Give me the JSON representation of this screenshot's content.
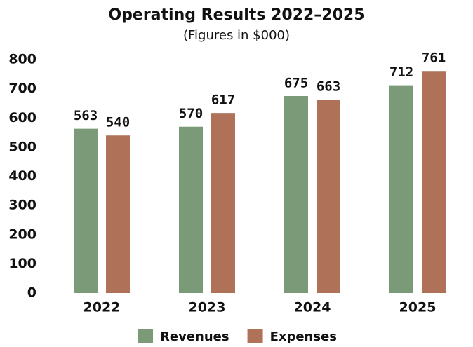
{
  "chart_data": {
    "type": "bar",
    "title": "Operating Results 2022–2025",
    "subtitle": "(Figures in $000)",
    "categories": [
      "2022",
      "2023",
      "2024",
      "2025"
    ],
    "series": [
      {
        "name": "Revenues",
        "color": "#7a9a78",
        "values": [
          563,
          570,
          675,
          712
        ]
      },
      {
        "name": "Expenses",
        "color": "#b07159",
        "values": [
          540,
          617,
          663,
          761
        ]
      }
    ],
    "ylim": [
      0,
      800
    ],
    "yticks": [
      0,
      100,
      200,
      300,
      400,
      500,
      600,
      700,
      800
    ],
    "grid": false,
    "legend": "bottom"
  }
}
